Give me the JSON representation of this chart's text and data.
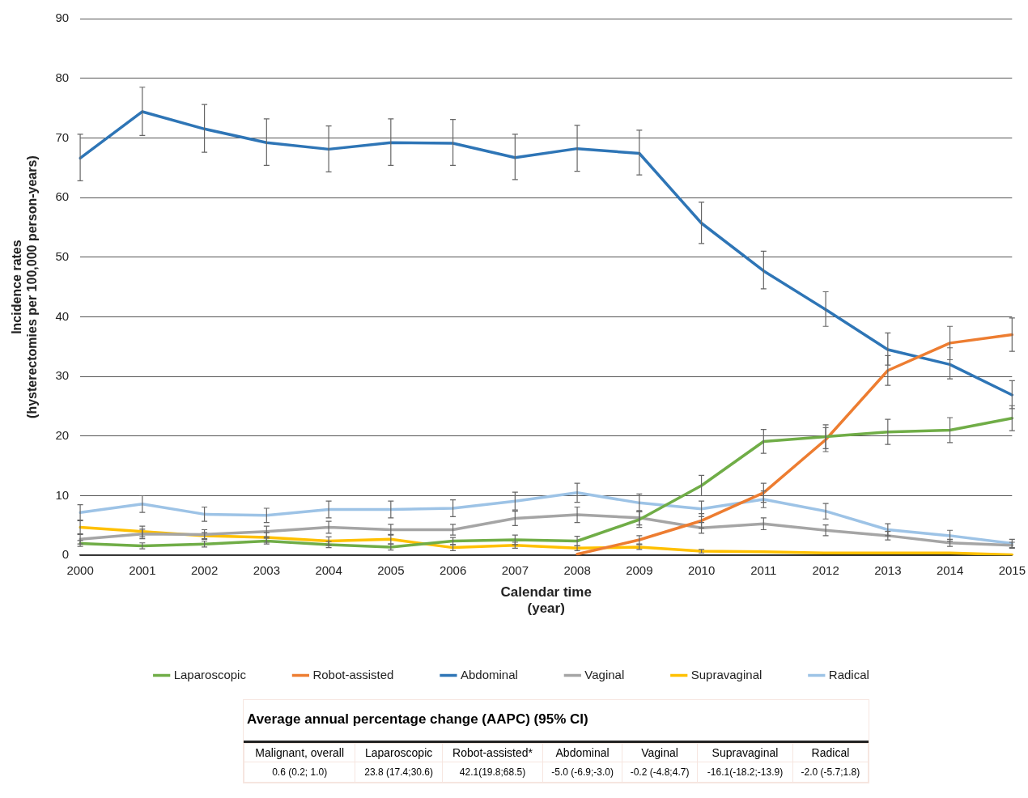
{
  "chart_data": [
    {
      "type": "line",
      "xlabel": [
        "Calendar time",
        "(year)"
      ],
      "ylabel": [
        "Incidence rates",
        "(hysterectomies per 100,000 person-years)"
      ],
      "categories": [
        "2000",
        "2001",
        "2002",
        "2003",
        "2004",
        "2005",
        "2006",
        "2007",
        "2008",
        "2009",
        "2010",
        "2011",
        "2012",
        "2013",
        "2014",
        "2015"
      ],
      "ylim": [
        0,
        90
      ],
      "yticks": [
        0,
        10,
        20,
        30,
        40,
        50,
        60,
        70,
        80,
        90
      ],
      "grid": "y",
      "legend": "bottom",
      "marker": "none",
      "line_style": "solid",
      "series": [
        {
          "name": "Laparoscopic",
          "color": "#70ad47",
          "values": [
            2.0,
            1.6,
            1.9,
            2.4,
            1.8,
            1.4,
            2.4,
            2.6,
            2.4,
            6.0,
            11.7,
            19.1,
            19.9,
            20.7,
            21.0,
            23.0
          ],
          "errors": [
            0.5,
            0.5,
            0.5,
            0.5,
            0.5,
            0.5,
            0.6,
            0.8,
            0.8,
            1.3,
            1.7,
            2.0,
            2.0,
            2.1,
            2.1,
            2.1
          ]
        },
        {
          "name": "Robot-assisted",
          "color": "#ed7d31",
          "values": [
            null,
            null,
            null,
            null,
            null,
            null,
            null,
            null,
            0.2,
            2.6,
            5.8,
            10.5,
            19.4,
            31.0,
            35.6,
            37.0
          ],
          "errors": [
            null,
            null,
            null,
            null,
            null,
            null,
            null,
            null,
            null,
            0.7,
            1.2,
            1.6,
            2.0,
            2.5,
            2.8,
            2.8
          ]
        },
        {
          "name": "Abdominal",
          "color": "#2e75b6",
          "values": [
            66.6,
            74.4,
            71.5,
            69.2,
            68.1,
            69.2,
            69.1,
            66.7,
            68.2,
            67.4,
            55.7,
            47.7,
            41.2,
            34.5,
            32.0,
            26.9
          ],
          "errors": [
            [
              62.8,
              70.6
            ],
            [
              70.4,
              78.5
            ],
            [
              67.6,
              75.6
            ],
            [
              65.4,
              73.2
            ],
            [
              64.3,
              72.0
            ],
            [
              65.4,
              73.2
            ],
            [
              65.4,
              73.1
            ],
            [
              63.0,
              70.6
            ],
            [
              64.4,
              72.1
            ],
            [
              63.8,
              71.3
            ],
            [
              52.3,
              59.2
            ],
            [
              44.7,
              51.0
            ],
            [
              38.4,
              44.2
            ],
            [
              31.9,
              37.3
            ],
            [
              29.6,
              34.8
            ],
            [
              24.6,
              29.3
            ]
          ]
        },
        {
          "name": "Vaginal",
          "color": "#a5a5a5",
          "values": [
            2.7,
            3.6,
            3.5,
            4.0,
            4.7,
            4.3,
            4.3,
            6.2,
            6.8,
            6.3,
            4.6,
            5.3,
            4.2,
            3.3,
            2.1,
            1.7
          ],
          "errors": [
            0.8,
            0.8,
            0.8,
            0.9,
            1.0,
            0.9,
            0.9,
            1.2,
            1.3,
            1.2,
            0.9,
            1.0,
            0.9,
            0.7,
            0.6,
            0.5
          ]
        },
        {
          "name": "Supravaginal",
          "color": "#ffc000",
          "values": [
            4.7,
            4.0,
            3.3,
            3.0,
            2.4,
            2.7,
            1.3,
            1.7,
            1.2,
            1.4,
            0.7,
            0.6,
            0.4,
            0.4,
            0.4,
            0.1
          ],
          "errors": [
            1.1,
            0.9,
            0.5,
            0.8,
            0.7,
            0.8,
            0.5,
            0.5,
            0.4,
            0.4,
            0.3,
            null,
            null,
            null,
            null,
            null
          ]
        },
        {
          "name": "Radical",
          "color": "#9dc3e6",
          "values": [
            7.2,
            8.6,
            6.9,
            6.7,
            7.7,
            7.7,
            7.9,
            9.1,
            10.5,
            8.8,
            7.8,
            9.4,
            7.4,
            4.3,
            3.3,
            2.0
          ],
          "errors": [
            1.3,
            1.4,
            1.2,
            1.2,
            1.4,
            1.4,
            1.4,
            1.5,
            1.6,
            1.5,
            1.3,
            1.4,
            1.3,
            1.0,
            0.9,
            0.7
          ]
        }
      ]
    },
    {
      "type": "other",
      "title": "Average annual percentage change (AAPC) (95% CI)",
      "categories": [
        "Malignant, overall",
        "Laparoscopic",
        "Robot-assisted*",
        "Abdominal",
        "Vaginal",
        "Supravaginal",
        "Radical"
      ],
      "annotations": [
        "0.6 (0.2; 1.0)",
        "23.8 (17.4;30.6)",
        "42.1(19.8;68.5)",
        "-5.0 (-6.9;-3.0)",
        "-0.2 (-4.8;4.7)",
        "-16.1(-18.2;-13.9)",
        "-2.0 (-5.7;1.8)"
      ]
    }
  ]
}
